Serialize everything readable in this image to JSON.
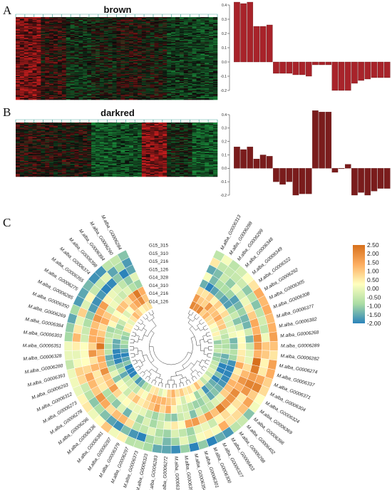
{
  "figure": {
    "panels": [
      {
        "letter": "A",
        "title": "brown"
      },
      {
        "letter": "B",
        "title": "darkred"
      },
      {
        "letter": "C",
        "title": ""
      }
    ]
  },
  "chart_data": [
    {
      "type": "heatmap",
      "panel": "A",
      "title": "brown",
      "rows": 120,
      "column_groups": 8,
      "group_bias": [
        0.55,
        0.15,
        -0.25,
        -0.15,
        0.05,
        -0.05,
        -0.35,
        -0.4
      ],
      "colors": {
        "low": "#1a8a3a",
        "mid": "#0a0a0a",
        "high": "#c81e1e"
      }
    },
    {
      "type": "bar",
      "panel": "A",
      "title": "",
      "xlabel": "",
      "ylabel": "",
      "ylim": [
        -0.2,
        0.4
      ],
      "yticks": [
        "-0.2",
        "-0.1",
        "0.0",
        "0.1",
        "0.2",
        "0.3",
        "0.4"
      ],
      "values": [
        0.42,
        0.41,
        0.42,
        0.25,
        0.25,
        0.26,
        -0.08,
        -0.08,
        -0.08,
        -0.09,
        -0.09,
        -0.1,
        -0.02,
        -0.02,
        -0.02,
        -0.2,
        -0.2,
        -0.2,
        -0.15,
        -0.13,
        -0.12,
        -0.11,
        -0.11,
        -0.11
      ],
      "bar_color": "#a8232a"
    },
    {
      "type": "heatmap",
      "panel": "B",
      "title": "darkred",
      "rows": 80,
      "column_groups": 8,
      "group_bias": [
        0.1,
        0.05,
        0.05,
        -0.6,
        -0.5,
        0.65,
        -0.2,
        -0.6
      ],
      "colors": {
        "low": "#1a8a3a",
        "mid": "#0a0a0a",
        "high": "#c81e1e"
      }
    },
    {
      "type": "bar",
      "panel": "B",
      "title": "",
      "xlabel": "",
      "ylabel": "",
      "ylim": [
        -0.2,
        0.4
      ],
      "yticks": [
        "-0.2",
        "-0.1",
        "0.0",
        "0.1",
        "0.2",
        "0.3",
        "0.4"
      ],
      "values": [
        0.16,
        0.14,
        0.16,
        0.07,
        0.1,
        0.09,
        -0.1,
        -0.12,
        -0.1,
        -0.2,
        -0.19,
        -0.19,
        0.43,
        0.42,
        0.42,
        -0.03,
        0.0,
        0.03,
        -0.2,
        -0.18,
        -0.2,
        -0.17,
        -0.15,
        -0.15
      ],
      "bar_color": "#7a1c1c"
    },
    {
      "type": "heatmap",
      "panel": "C",
      "layout": "circular",
      "tracks": [
        "G15_315",
        "G15_310",
        "G15_216",
        "G15_126",
        "G14_328",
        "G14_310",
        "G14_216",
        "G14_126"
      ],
      "genes": [
        "M.alba_G0006313",
        "M.alba_G0006288",
        "M.alba_G0006299",
        "M.alba_G0006348",
        "M.alba_G0006349",
        "M.alba_G0006322",
        "M.alba_G0006292",
        "M.alba_G0006305",
        "M.alba_G0006308",
        "M.alba_G0006377",
        "M.alba_G0006382",
        "M.alba_G0006268",
        "M.alba_G0006289",
        "M.alba_G0006282",
        "M.alba_G0006274",
        "M.alba_G0006337",
        "M.alba_G0006371",
        "M.alba_G0006304",
        "M.alba_G0006324",
        "M.alba_G0006369",
        "M.alba_G0006396",
        "M.alba_G0006402",
        "M.alba_G0006298",
        "M.alba_G0006403",
        "M.alba_G0006327",
        "M.alba_G0006300",
        "M.alba_G0006301",
        "M.alba_G0006354",
        "M.alba_G0006395",
        "M.alba_G0006365",
        "M.alba_G0006272",
        "M.alba_G0006283",
        "M.alba_G0006323",
        "M.alba_G0006373",
        "M.alba_G0006297",
        "M.alba_G0006379",
        "M.alba_G0006287",
        "M.alba_G0006381",
        "M.alba_G0006336",
        "M.alba_G0006296",
        "M.alba_G0006278",
        "M.alba_G0006273",
        "M.alba_G0006312",
        "M.alba_G0006293",
        "M.alba_G0006393",
        "M.alba_G0006280",
        "M.alba_G0006328",
        "M.alba_G0006351",
        "M.alba_G0006303",
        "M.alba_G0006384",
        "M.alba_G0006269",
        "M.alba_G0006350",
        "M.alba_G0006285",
        "M.alba_G0006275",
        "M.alba_G0006355",
        "M.alba_G0006374",
        "M.alba_G0006398",
        "M.alba_G0006394",
        "M.alba_G0006290",
        "M.alba_G0006284"
      ],
      "legend": {
        "ticks": [
          "2.50",
          "2.00",
          "1.50",
          "1.00",
          "0.50",
          "0.00",
          "-0.50",
          "-1.00",
          "-1.50",
          "-2.00"
        ],
        "min": -2.0,
        "max": 2.5,
        "colors": [
          "#2b83ba",
          "#abdda4",
          "#ffffbf",
          "#fdae61",
          "#d7701c"
        ]
      }
    }
  ]
}
